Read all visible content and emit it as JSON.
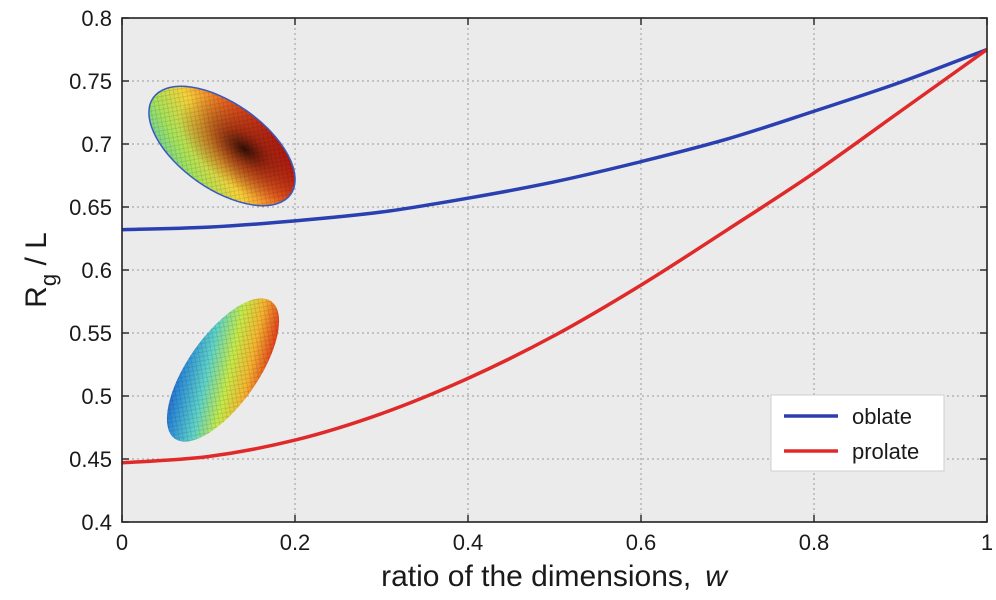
{
  "chart_data": {
    "type": "line",
    "title": "",
    "xlabel": "ratio of the dimensions,",
    "xlabel_var": "w",
    "ylabel_main": "R",
    "ylabel_sub": "g",
    "ylabel_rest": " / L",
    "xlim": [
      0,
      1
    ],
    "ylim": [
      0.4,
      0.8
    ],
    "xticks": [
      "0",
      "0.2",
      "0.4",
      "0.6",
      "0.8",
      "1"
    ],
    "yticks": [
      "0.4",
      "0.45",
      "0.5",
      "0.55",
      "0.6",
      "0.65",
      "0.7",
      "0.75",
      "0.8"
    ],
    "grid": true,
    "legend_position": "bottom-right",
    "x": [
      0,
      0.1,
      0.2,
      0.3,
      0.4,
      0.5,
      0.6,
      0.7,
      0.8,
      0.9,
      1.0
    ],
    "series": [
      {
        "name": "oblate",
        "color": "#2a3fb0",
        "values": [
          0.632,
          0.634,
          0.639,
          0.646,
          0.657,
          0.67,
          0.686,
          0.704,
          0.726,
          0.749,
          0.775
        ]
      },
      {
        "name": "prolate",
        "color": "#e02a2a",
        "values": [
          0.447,
          0.452,
          0.465,
          0.486,
          0.514,
          0.548,
          0.588,
          0.632,
          0.677,
          0.726,
          0.775
        ]
      }
    ],
    "insets": [
      {
        "name": "oblate-ellipsoid-icon"
      },
      {
        "name": "prolate-ellipsoid-icon"
      }
    ]
  }
}
